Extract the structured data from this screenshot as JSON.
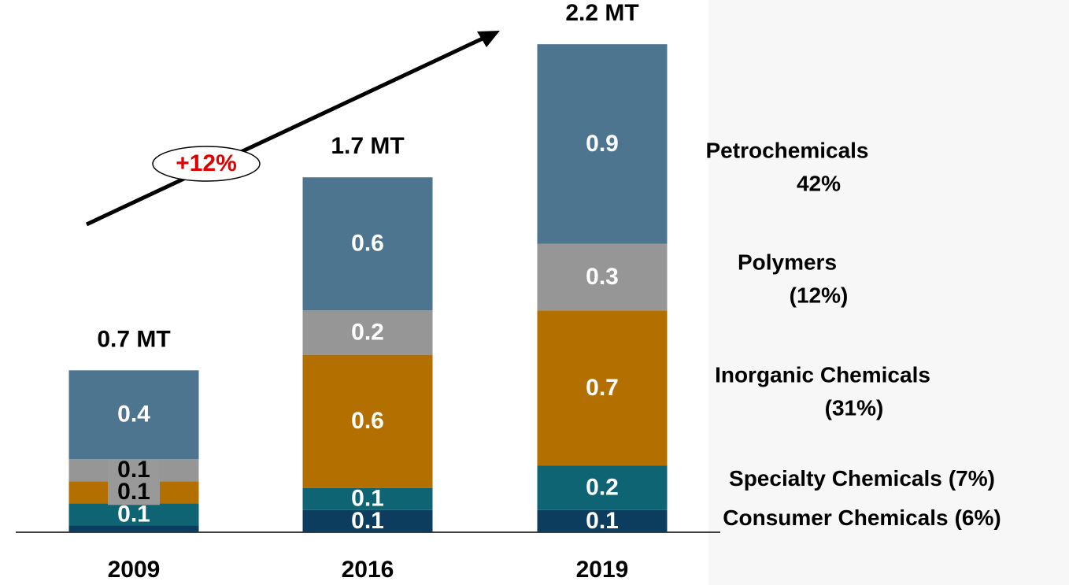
{
  "chart_data": {
    "type": "stacked-bar",
    "categories": [
      "2009",
      "2016",
      "2019"
    ],
    "total_labels": [
      "0.7 MT",
      "1.7 MT",
      "2.2 MT"
    ],
    "growth_label": "+12%",
    "series": [
      {
        "name": "Consumer Chemicals",
        "share_label": "(6%)",
        "color": "#0d3d5e",
        "values": [
          0.03,
          0.1,
          0.1
        ],
        "value_labels": [
          null,
          "0.1",
          "0.1"
        ]
      },
      {
        "name": "Specialty Chemicals",
        "share_label": "(7%)",
        "color": "#0e6473",
        "values": [
          0.1,
          0.1,
          0.2
        ],
        "value_labels": [
          "0.1",
          "0.1",
          "0.2"
        ]
      },
      {
        "name": "Inorganic Chemicals",
        "share_label": "(31%)",
        "color": "#b36f00",
        "values": [
          0.1,
          0.6,
          0.7
        ],
        "value_labels": [
          "0.1",
          "0.6",
          "0.7"
        ]
      },
      {
        "name": "Polymers",
        "share_label": "(12%)",
        "color": "#969696",
        "values": [
          0.1,
          0.2,
          0.3
        ],
        "value_labels": [
          "0.1",
          "0.2",
          "0.3"
        ]
      },
      {
        "name": "Petrochemicals",
        "share_label": "42%",
        "color": "#4e7590",
        "values": [
          0.4,
          0.6,
          0.9
        ],
        "value_labels": [
          "0.4",
          "0.6",
          "0.9"
        ]
      }
    ],
    "ylim": [
      0,
      2.3
    ]
  }
}
